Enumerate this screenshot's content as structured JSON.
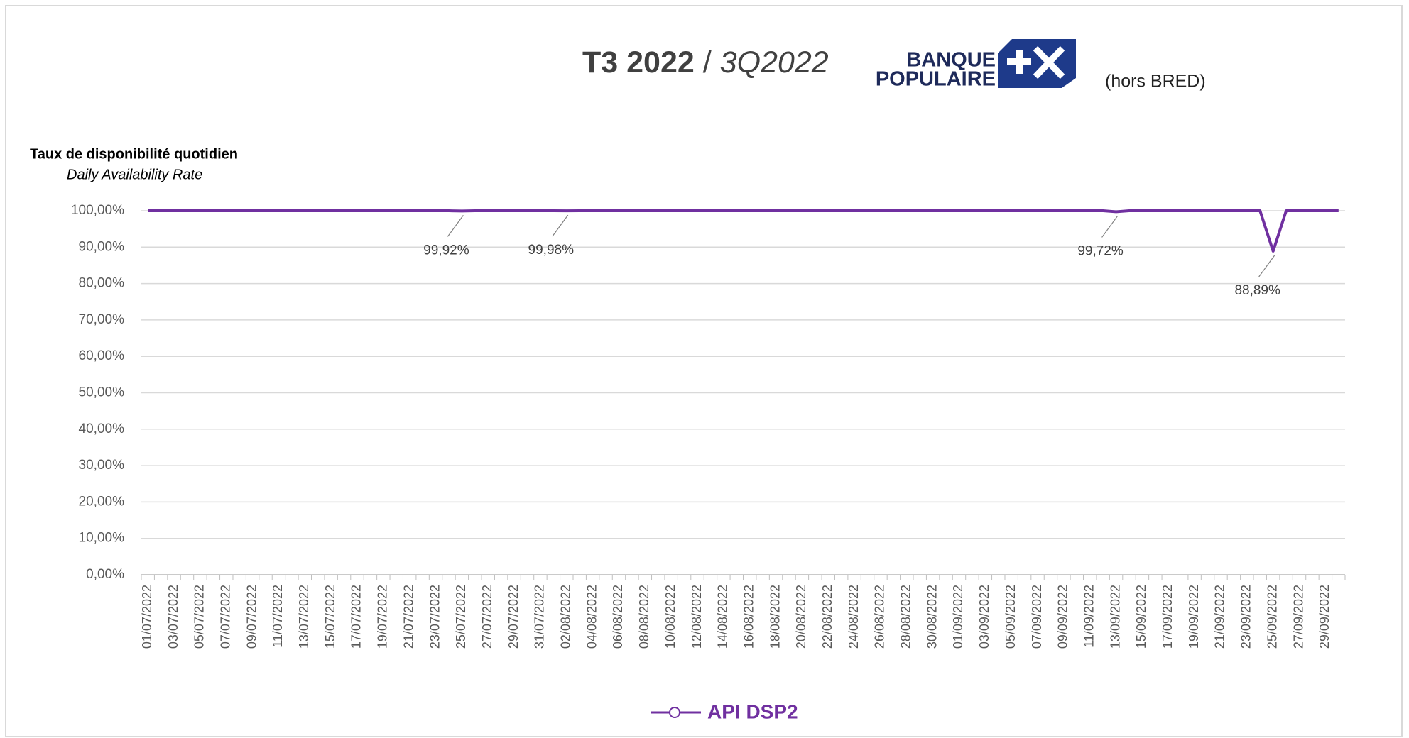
{
  "chart_data": {
    "type": "line",
    "title_main": "T3 2022",
    "title_sep": "/",
    "title_alt": "3Q2022",
    "logo": {
      "line1": "BANQUE",
      "line2": "POPULAIRE"
    },
    "note": "(hors BRED)",
    "y_label": "Taux de disponibilité quotidien",
    "y_label_en": "Daily Availability Rate",
    "categories": [
      "01/07/2022",
      null,
      "03/07/2022",
      null,
      "05/07/2022",
      null,
      "07/07/2022",
      null,
      "09/07/2022",
      null,
      "11/07/2022",
      null,
      "13/07/2022",
      null,
      "15/07/2022",
      null,
      "17/07/2022",
      null,
      "19/07/2022",
      null,
      "21/07/2022",
      null,
      "23/07/2022",
      null,
      "25/07/2022",
      null,
      "27/07/2022",
      null,
      "29/07/2022",
      null,
      "31/07/2022",
      null,
      "02/08/2022",
      null,
      "04/08/2022",
      null,
      "06/08/2022",
      null,
      "08/08/2022",
      null,
      "10/08/2022",
      null,
      "12/08/2022",
      null,
      "14/08/2022",
      null,
      "16/08/2022",
      null,
      "18/08/2022",
      null,
      "20/08/2022",
      null,
      "22/08/2022",
      null,
      "24/08/2022",
      null,
      "26/08/2022",
      null,
      "28/08/2022",
      null,
      "30/08/2022",
      null,
      "01/09/2022",
      null,
      "03/09/2022",
      null,
      "05/09/2022",
      null,
      "07/09/2022",
      null,
      "09/09/2022",
      null,
      "11/09/2022",
      null,
      "13/09/2022",
      null,
      "15/09/2022",
      null,
      "17/09/2022",
      null,
      "19/09/2022",
      null,
      "21/09/2022",
      null,
      "23/09/2022",
      null,
      "25/09/2022",
      null,
      "27/09/2022",
      null,
      "29/09/2022",
      null
    ],
    "series": [
      {
        "name": "API DSP2",
        "color": "#7030a0",
        "values": [
          100,
          100,
          100,
          100,
          100,
          100,
          100,
          100,
          100,
          100,
          100,
          100,
          100,
          100,
          100,
          100,
          100,
          100,
          100,
          100,
          100,
          100,
          100,
          100,
          99.92,
          100,
          100,
          100,
          100,
          100,
          100,
          100,
          99.98,
          100,
          100,
          100,
          100,
          100,
          100,
          100,
          100,
          100,
          100,
          100,
          100,
          100,
          100,
          100,
          100,
          100,
          100,
          100,
          100,
          100,
          100,
          100,
          100,
          100,
          100,
          100,
          100,
          100,
          100,
          100,
          100,
          100,
          100,
          100,
          100,
          100,
          100,
          100,
          100,
          100,
          99.72,
          100,
          100,
          100,
          100,
          100,
          100,
          100,
          100,
          100,
          100,
          100,
          88.89,
          100,
          100,
          100,
          100,
          100
        ],
        "value_labels": [
          null,
          null,
          null,
          null,
          null,
          null,
          null,
          null,
          null,
          null,
          null,
          null,
          null,
          null,
          null,
          null,
          null,
          null,
          null,
          null,
          null,
          null,
          null,
          null,
          "99,92%",
          null,
          null,
          null,
          null,
          null,
          null,
          null,
          "99,98%",
          null,
          null,
          null,
          null,
          null,
          null,
          null,
          null,
          null,
          null,
          null,
          null,
          null,
          null,
          null,
          null,
          null,
          null,
          null,
          null,
          null,
          null,
          null,
          null,
          null,
          null,
          null,
          null,
          null,
          null,
          null,
          null,
          null,
          null,
          null,
          null,
          null,
          null,
          null,
          null,
          null,
          "99,72%",
          null,
          null,
          null,
          null,
          null,
          null,
          null,
          null,
          null,
          null,
          null,
          "88,89%",
          null,
          null,
          null,
          null,
          null
        ]
      }
    ],
    "ylim": [
      0,
      100
    ],
    "yticks": [
      {
        "value": 0,
        "label": "0,00%"
      },
      {
        "value": 10,
        "label": "10,00%"
      },
      {
        "value": 20,
        "label": "20,00%"
      },
      {
        "value": 30,
        "label": "30,00%"
      },
      {
        "value": 40,
        "label": "40,00%"
      },
      {
        "value": 50,
        "label": "50,00%"
      },
      {
        "value": 60,
        "label": "60,00%"
      },
      {
        "value": 70,
        "label": "70,00%"
      },
      {
        "value": 80,
        "label": "80,00%"
      },
      {
        "value": 90,
        "label": "90,00%"
      },
      {
        "value": 100,
        "label": "100,00%"
      }
    ],
    "grid": true
  }
}
